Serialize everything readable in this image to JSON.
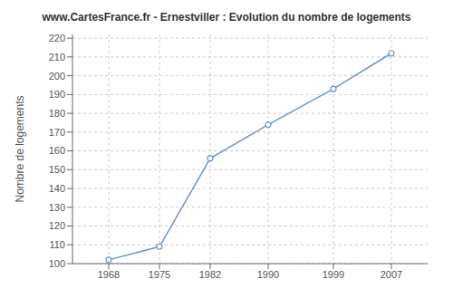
{
  "chart_data": {
    "type": "line",
    "title": "www.CartesFrance.fr - Ernestviller : Evolution du nombre de logements",
    "ylabel": "Nombre de logements",
    "x": [
      1968,
      1975,
      1982,
      1990,
      1999,
      2007
    ],
    "values": [
      102,
      109,
      156,
      174,
      193,
      212
    ],
    "color": "#6699cc",
    "marker": "circle",
    "xlim": [
      1963,
      2012
    ],
    "xticks": [
      1968,
      1975,
      1982,
      1990,
      1999,
      2007
    ],
    "ylim": [
      100,
      222
    ],
    "yticks": [
      100,
      110,
      120,
      130,
      140,
      150,
      160,
      170,
      180,
      190,
      200,
      210,
      220
    ],
    "grid": true
  }
}
